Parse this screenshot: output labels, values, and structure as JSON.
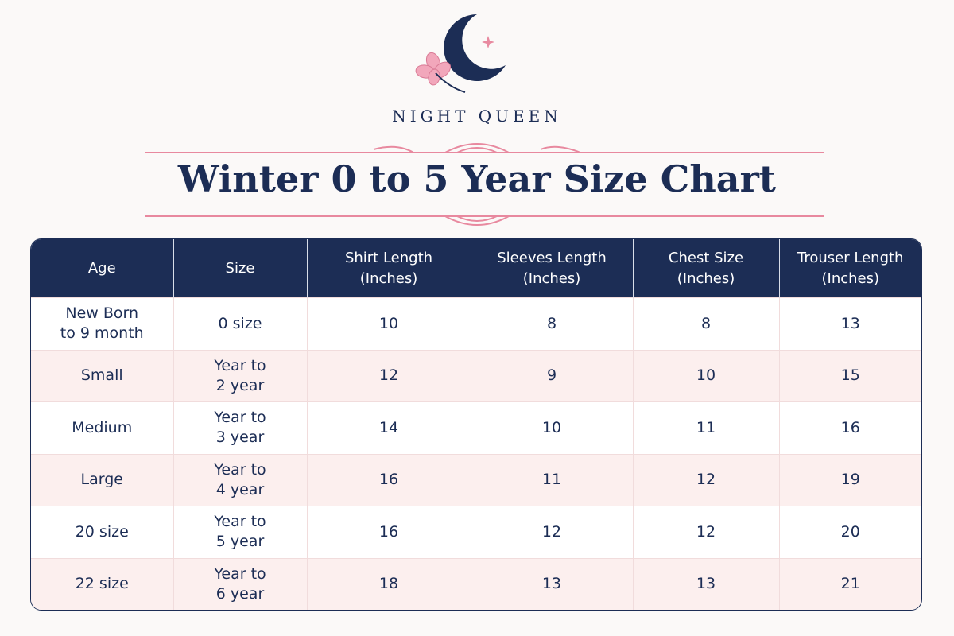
{
  "brand": "NIGHT QUEEN",
  "title": "Winter 0 to 5 Year Size Chart",
  "table": {
    "headers": [
      "Age",
      "Size",
      "Shirt Length\n(Inches)",
      "Sleeves Length\n(Inches)",
      "Chest Size\n(Inches)",
      "Trouser Length\n(Inches)"
    ],
    "rows": [
      [
        "New Born\nto 9 month",
        "0 size",
        10,
        8,
        8,
        13
      ],
      [
        "Small",
        "Year to\n2 year",
        12,
        9,
        10,
        15
      ],
      [
        "Medium",
        "Year to\n3 year",
        14,
        10,
        11,
        16
      ],
      [
        "Large",
        "Year to\n4 year",
        16,
        11,
        12,
        19
      ],
      [
        "20 size",
        "Year to\n5 year",
        16,
        12,
        12,
        20
      ],
      [
        "22 size",
        "Year to\n6 year",
        18,
        13,
        13,
        21
      ]
    ]
  }
}
